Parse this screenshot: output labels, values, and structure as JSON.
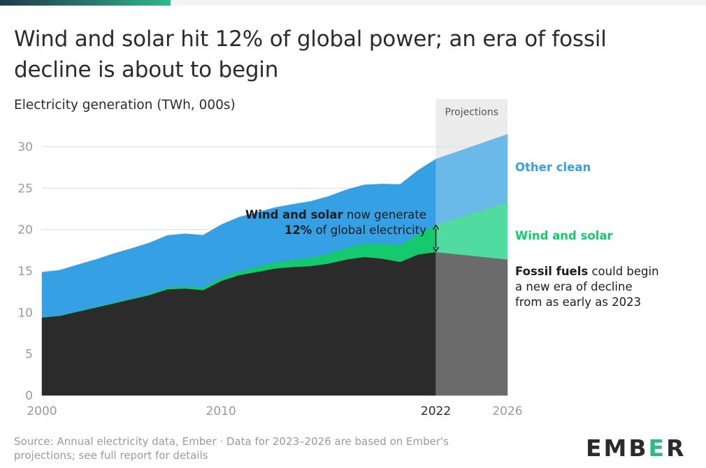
{
  "title": "Wind and solar hit 12% of global power; an era of fossil decline is about to begin",
  "subtitle": "Electricity generation (TWh, 000s)",
  "projection_label": "Projections",
  "annotations": {
    "other_clean": "Other clean",
    "wind_solar": "Wind and solar",
    "fossil_bold": "Fossil fuels",
    "fossil_line1": " could begin",
    "fossil_line2": "a new era of decline",
    "fossil_line3": "from as early as 2023",
    "ws_bold": "Wind and solar",
    "ws_line1": " now generate",
    "ws_pct": "12%",
    "ws_line2": " of global electricity"
  },
  "footer": {
    "source_line1": "Source: Annual electricity data, Ember · Data for 2023–2026 are based on Ember's",
    "source_line2": "projections; see full report for details"
  },
  "logo": {
    "pre": "EMB",
    "mid": "E",
    "post": "R"
  },
  "colors": {
    "fossil": "#2b2b2b",
    "wind_solar": "#14c96e",
    "other_clean": "#35a0e3",
    "fossil_proj": "#6b6b6b",
    "wind_solar_proj": "#52dba0",
    "other_clean_proj": "#6ab9e8",
    "other_clean_label": "#35a0e3",
    "wind_solar_label": "#14c96e"
  },
  "chart_data": {
    "type": "area",
    "stacked": true,
    "x": [
      2000,
      2001,
      2002,
      2003,
      2004,
      2005,
      2006,
      2007,
      2008,
      2009,
      2010,
      2011,
      2012,
      2013,
      2014,
      2015,
      2016,
      2017,
      2018,
      2019,
      2020,
      2021,
      2022,
      2026
    ],
    "series": [
      {
        "name": "Fossil fuels",
        "values": [
          9.4,
          9.6,
          10.1,
          10.6,
          11.1,
          11.6,
          12.1,
          12.8,
          12.9,
          12.7,
          13.8,
          14.5,
          14.9,
          15.3,
          15.5,
          15.6,
          15.9,
          16.4,
          16.7,
          16.5,
          16.1,
          17.0,
          17.3,
          16.4
        ]
      },
      {
        "name": "Wind and solar",
        "values": [
          0.04,
          0.05,
          0.06,
          0.08,
          0.1,
          0.12,
          0.15,
          0.2,
          0.25,
          0.32,
          0.38,
          0.5,
          0.6,
          0.75,
          0.85,
          1.0,
          1.2,
          1.4,
          1.6,
          1.8,
          2.05,
          2.45,
          3.3,
          6.9
        ]
      },
      {
        "name": "Other clean",
        "values": [
          5.4,
          5.45,
          5.6,
          5.7,
          5.9,
          6.0,
          6.15,
          6.3,
          6.35,
          6.3,
          6.4,
          6.5,
          6.55,
          6.6,
          6.7,
          6.8,
          6.9,
          7.0,
          7.1,
          7.2,
          7.3,
          7.7,
          7.9,
          8.2
        ]
      }
    ],
    "projection_start": 2022,
    "xlim": [
      2000,
      2026
    ],
    "ylim": [
      0,
      30
    ],
    "y_ticks": [
      0,
      5,
      10,
      15,
      20,
      25,
      30
    ],
    "x_ticks": [
      2000,
      2010,
      2022,
      2026
    ],
    "grid": true
  }
}
